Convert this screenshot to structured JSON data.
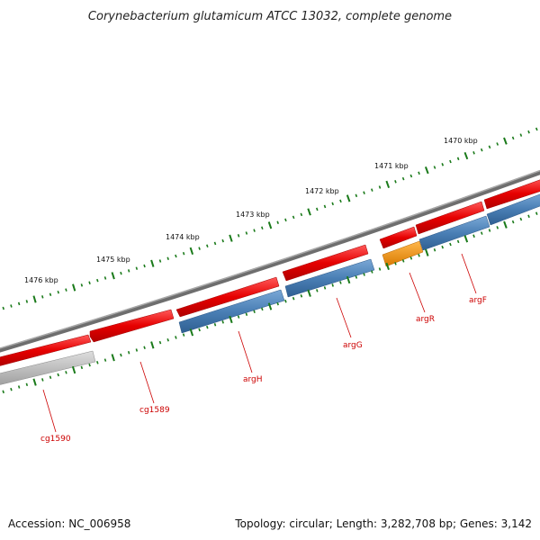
{
  "title": "Corynebacterium glutamicum ATCC 13032, complete genome",
  "footer": {
    "accession": "Accession: NC_006958",
    "summary": "Topology: circular; Length: 3,282,708 bp; Genes: 3,142"
  },
  "colors": {
    "backbone": "#7a7a7a",
    "forward_gene": "#e60000",
    "reverse_gene": "#4a7fb5",
    "regulator_gene": "#f08c00",
    "other_gene": "#b8b8b8",
    "tick": "#1a7a1a",
    "label_line": "#cc0000"
  },
  "scale_labels": [
    {
      "label": "1476 kbp",
      "kbp": 1476
    },
    {
      "label": "1475 kbp",
      "kbp": 1475
    },
    {
      "label": "1474 kbp",
      "kbp": 1474
    },
    {
      "label": "1473 kbp",
      "kbp": 1473
    },
    {
      "label": "1472 kbp",
      "kbp": 1472
    },
    {
      "label": "1471 kbp",
      "kbp": 1471
    },
    {
      "label": "1470 kbp",
      "kbp": 1470
    }
  ],
  "gene_labels": [
    {
      "name": "cg1590"
    },
    {
      "name": "cg1589"
    },
    {
      "name": "argH"
    },
    {
      "name": "argG"
    },
    {
      "name": "argR"
    },
    {
      "name": "argF"
    }
  ]
}
